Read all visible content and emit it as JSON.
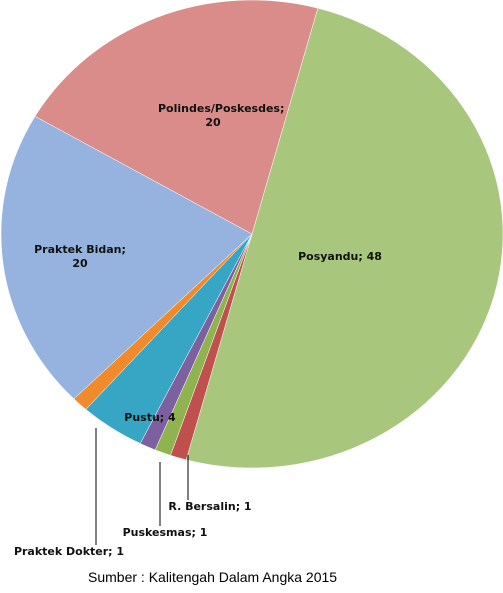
{
  "chart_data": {
    "type": "pie",
    "value_labels": [
      "Posyandu; 48",
      null,
      "R. Bersalin; 1",
      "Puskesmas; 1",
      "Pustu; 4",
      "Praktek Dokter; 1",
      "Praktek Bidan; 20",
      "Polindes/Poskesdes; 20"
    ],
    "values": [
      48,
      1,
      1,
      1,
      4,
      1,
      20,
      20
    ],
    "colors": [
      "#a8c67c",
      "#c0504d",
      "#8fb44f",
      "#7d60a0",
      "#36a6c4",
      "#f08a2a",
      "#95b3de",
      "#d98c8a"
    ],
    "source": "Sumber : Kalitengah Dalam Angka 2015"
  }
}
